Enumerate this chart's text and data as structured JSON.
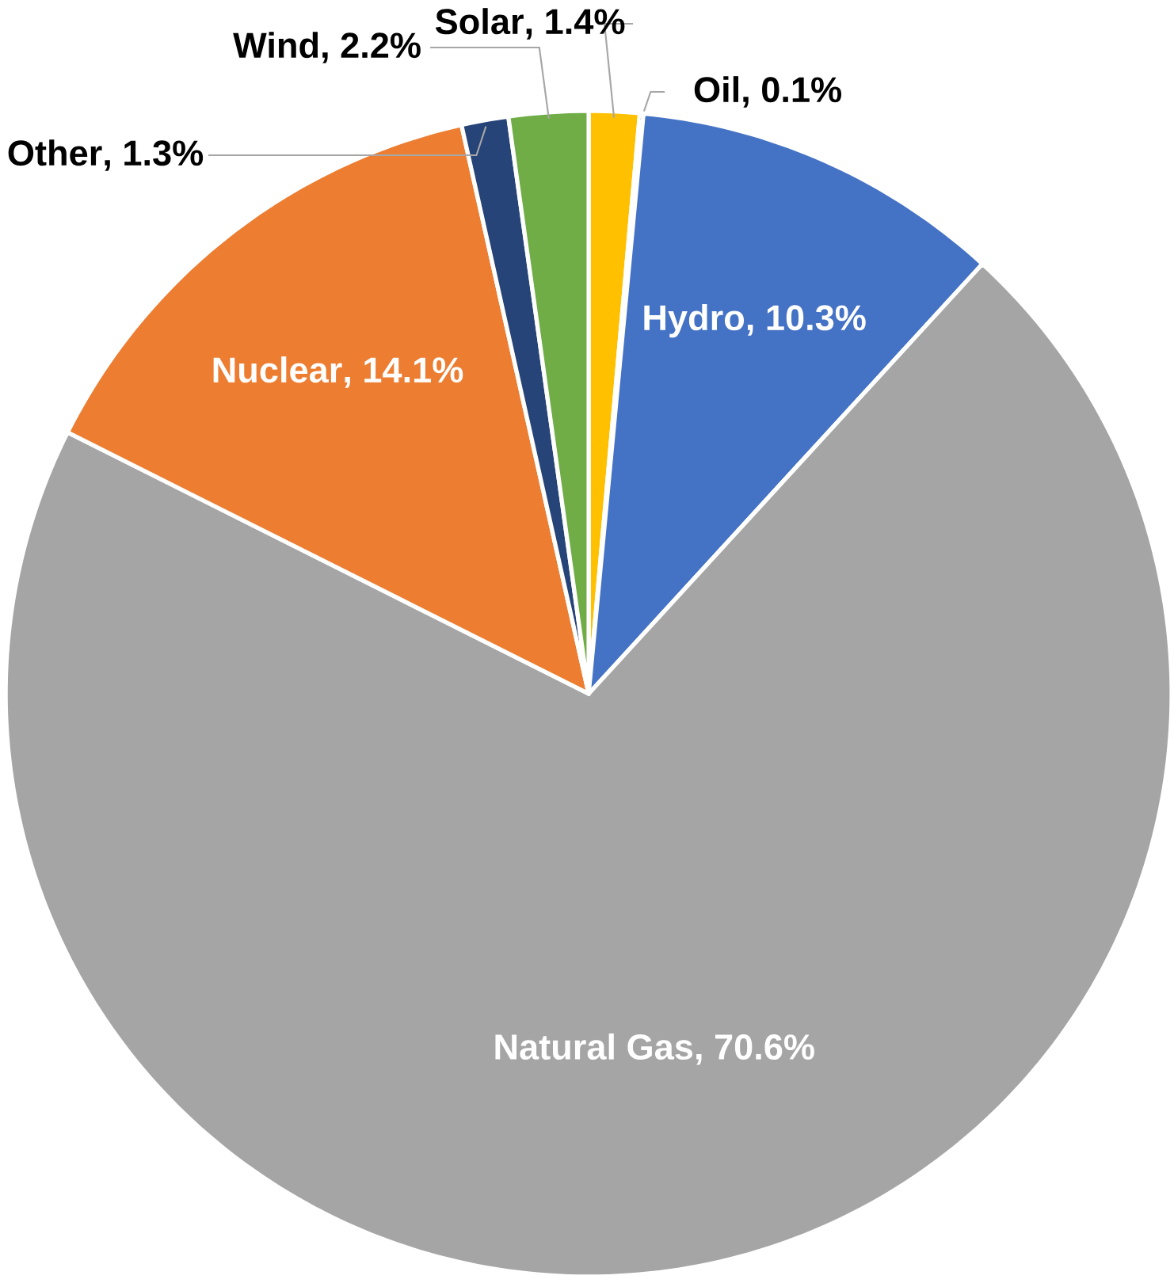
{
  "chart_data": {
    "type": "pie",
    "categories": [
      "Solar",
      "Oil",
      "Hydro",
      "Natural Gas",
      "Nuclear",
      "Other",
      "Wind"
    ],
    "values": [
      1.4,
      0.1,
      10.3,
      70.6,
      14.1,
      1.3,
      2.2
    ],
    "value_labels": [
      ", 1.4%",
      ", 0.1%",
      ", 10.3%",
      ", 70.6%",
      ", 14.1%",
      ", 1.3%",
      ", 2.2%"
    ],
    "colors": [
      "#ffc000",
      "#5b9bd5",
      "#4472c4",
      "#a5a5a5",
      "#ed7d31",
      "#264478",
      "#70ad47"
    ]
  }
}
